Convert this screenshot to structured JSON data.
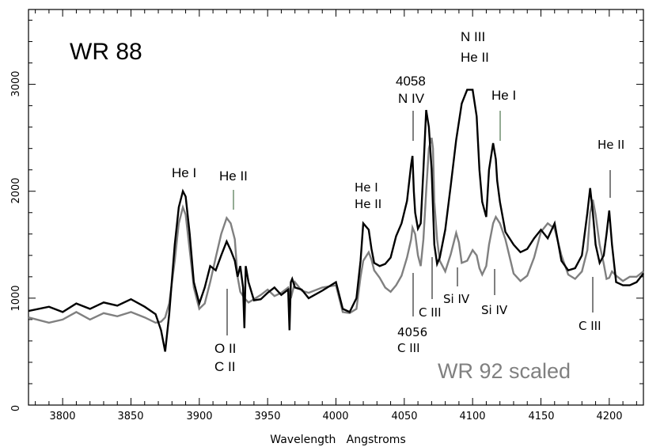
{
  "chart_data": {
    "type": "line",
    "title": "WR 88",
    "xlabel": "Wavelength   Angstroms",
    "ylabel": "",
    "xlim": [
      3775,
      4225
    ],
    "ylim": [
      0,
      3700
    ],
    "grid": false,
    "x_ticks": [
      3800,
      3850,
      3900,
      3950,
      4000,
      4050,
      4100,
      4150,
      4200
    ],
    "y_ticks": [
      0,
      1000,
      2000,
      3000
    ],
    "legend_text": "WR 92 scaled",
    "series": [
      {
        "color": "#000000",
        "x": [
          3775,
          3790,
          3800,
          3810,
          3820,
          3830,
          3840,
          3850,
          3860,
          3868,
          3872,
          3875,
          3878,
          3882,
          3885,
          3888,
          3890,
          3893,
          3896,
          3900,
          3904,
          3908,
          3912,
          3916,
          3920,
          3923,
          3926,
          3928,
          3930,
          3932,
          3933,
          3934,
          3936,
          3940,
          3945,
          3950,
          3955,
          3960,
          3965,
          3966,
          3967,
          3968,
          3970,
          3975,
          3980,
          3990,
          4000,
          4005,
          4010,
          4015,
          4018,
          4020,
          4024,
          4026,
          4028,
          4032,
          4036,
          4040,
          4044,
          4048,
          4052,
          4055,
          4056,
          4057,
          4058,
          4060,
          4062,
          4064,
          4066,
          4068,
          4070,
          4071,
          4072,
          4074,
          4076,
          4080,
          4084,
          4088,
          4092,
          4096,
          4100,
          4103,
          4105,
          4107,
          4110,
          4112,
          4115,
          4117,
          4118,
          4120,
          4124,
          4130,
          4135,
          4140,
          4145,
          4150,
          4155,
          4160,
          4165,
          4170,
          4175,
          4180,
          4184,
          4186,
          4188,
          4190,
          4193,
          4196,
          4198,
          4200,
          4202,
          4205,
          4210,
          4215,
          4220,
          4225
        ],
        "y": [
          880,
          920,
          870,
          950,
          900,
          960,
          930,
          990,
          920,
          850,
          700,
          500,
          850,
          1500,
          1850,
          2000,
          1950,
          1600,
          1150,
          950,
          1100,
          1300,
          1260,
          1400,
          1530,
          1450,
          1350,
          1200,
          1300,
          1100,
          720,
          1300,
          1150,
          980,
          990,
          1050,
          1100,
          1030,
          1080,
          700,
          1150,
          1180,
          1100,
          1080,
          1000,
          1070,
          1150,
          900,
          870,
          1000,
          1350,
          1700,
          1640,
          1460,
          1330,
          1300,
          1320,
          1380,
          1580,
          1700,
          1910,
          2250,
          2330,
          2000,
          1800,
          1650,
          1700,
          2200,
          2760,
          2600,
          2200,
          1850,
          1500,
          1320,
          1380,
          1640,
          2050,
          2480,
          2820,
          2950,
          2950,
          2700,
          2200,
          1900,
          1760,
          2200,
          2450,
          2300,
          2100,
          1900,
          1620,
          1500,
          1430,
          1460,
          1560,
          1640,
          1560,
          1700,
          1350,
          1260,
          1280,
          1400,
          1800,
          2030,
          1800,
          1500,
          1330,
          1400,
          1600,
          1820,
          1500,
          1150,
          1120,
          1120,
          1150,
          1230
        ]
      },
      {
        "color": "#808080",
        "x": [
          3775,
          3790,
          3800,
          3810,
          3820,
          3830,
          3840,
          3850,
          3860,
          3868,
          3872,
          3875,
          3878,
          3882,
          3885,
          3888,
          3890,
          3893,
          3896,
          3900,
          3904,
          3908,
          3912,
          3916,
          3920,
          3923,
          3926,
          3928,
          3930,
          3933,
          3936,
          3940,
          3945,
          3950,
          3955,
          3960,
          3965,
          3967,
          3970,
          3975,
          3980,
          3990,
          4000,
          4005,
          4010,
          4015,
          4018,
          4020,
          4024,
          4026,
          4028,
          4032,
          4036,
          4040,
          4044,
          4048,
          4052,
          4055,
          4056,
          4058,
          4060,
          4062,
          4064,
          4066,
          4068,
          4070,
          4071,
          4072,
          4074,
          4076,
          4080,
          4084,
          4088,
          4090,
          4092,
          4096,
          4100,
          4103,
          4105,
          4107,
          4110,
          4112,
          4115,
          4117,
          4120,
          4124,
          4130,
          4135,
          4140,
          4145,
          4150,
          4155,
          4160,
          4165,
          4170,
          4175,
          4180,
          4184,
          4186,
          4188,
          4190,
          4193,
          4196,
          4198,
          4200,
          4202,
          4205,
          4210,
          4215,
          4220,
          4225
        ],
        "y": [
          820,
          770,
          800,
          870,
          800,
          860,
          830,
          870,
          820,
          770,
          780,
          820,
          950,
          1350,
          1700,
          1850,
          1780,
          1450,
          1100,
          900,
          950,
          1150,
          1380,
          1600,
          1750,
          1700,
          1550,
          1200,
          1060,
          1000,
          960,
          990,
          1030,
          1080,
          1020,
          1050,
          1100,
          1000,
          1150,
          1070,
          1050,
          1100,
          1120,
          870,
          860,
          900,
          1200,
          1350,
          1430,
          1360,
          1260,
          1190,
          1100,
          1060,
          1120,
          1210,
          1380,
          1550,
          1660,
          1600,
          1400,
          1300,
          1550,
          2000,
          2400,
          2500,
          2400,
          1900,
          1550,
          1350,
          1250,
          1410,
          1610,
          1520,
          1330,
          1350,
          1450,
          1400,
          1280,
          1220,
          1300,
          1500,
          1700,
          1760,
          1700,
          1550,
          1230,
          1160,
          1210,
          1380,
          1620,
          1700,
          1650,
          1400,
          1220,
          1180,
          1250,
          1450,
          1800,
          1920,
          1780,
          1500,
          1320,
          1180,
          1190,
          1250,
          1210,
          1160,
          1200,
          1200,
          1250
        ]
      }
    ],
    "annotations": [
      {
        "id": "wr88",
        "text": "WR 88"
      },
      {
        "id": "hei-3888",
        "text": "He I"
      },
      {
        "id": "heii-3923",
        "text": "He II"
      },
      {
        "id": "oii",
        "text": "O II"
      },
      {
        "id": "cii",
        "text": "C II"
      },
      {
        "id": "hei-4026",
        "text": "He I"
      },
      {
        "id": "heii-4026",
        "text": "He II"
      },
      {
        "id": "n4058",
        "text": "4058"
      },
      {
        "id": "niv",
        "text": "N IV"
      },
      {
        "id": "c4056",
        "text": "4056"
      },
      {
        "id": "ciii-4056",
        "text": "C III"
      },
      {
        "id": "ciii-4070",
        "text": "C III"
      },
      {
        "id": "siiv-4089",
        "text": "Si IV"
      },
      {
        "id": "niii",
        "text": "N III"
      },
      {
        "id": "heii-4100",
        "text": "He II"
      },
      {
        "id": "hei-4121",
        "text": "He I"
      },
      {
        "id": "siiv-4116",
        "text": "Si IV"
      },
      {
        "id": "ciii-4187",
        "text": "C III"
      },
      {
        "id": "heii-4200",
        "text": "He II"
      }
    ]
  }
}
